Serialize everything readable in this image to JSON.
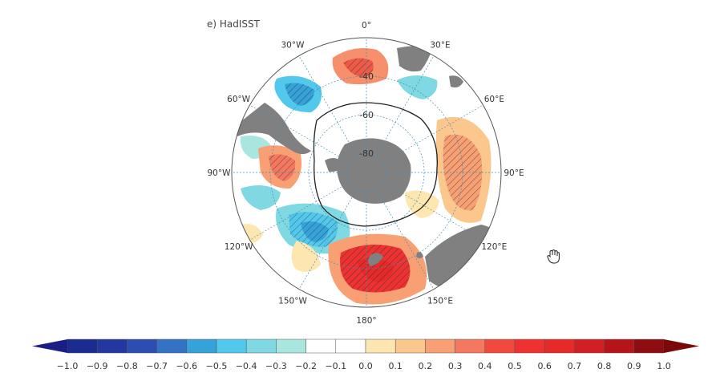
{
  "panel": {
    "title": "e) HadISST"
  },
  "lon_labels": [
    {
      "text": "0°",
      "lon": 0
    },
    {
      "text": "30°E",
      "lon": 30
    },
    {
      "text": "60°E",
      "lon": 60
    },
    {
      "text": "90°E",
      "lon": 90
    },
    {
      "text": "120°E",
      "lon": 120
    },
    {
      "text": "150°E",
      "lon": 150
    },
    {
      "text": "180°",
      "lon": 180
    },
    {
      "text": "150°W",
      "lon": -150
    },
    {
      "text": "120°W",
      "lon": -120
    },
    {
      "text": "90°W",
      "lon": -90
    },
    {
      "text": "60°W",
      "lon": -60
    },
    {
      "text": "30°W",
      "lon": -30
    }
  ],
  "lat_labels": [
    {
      "text": "-40",
      "lat": -40
    },
    {
      "text": "-60",
      "lat": -60
    },
    {
      "text": "-80",
      "lat": -80
    }
  ],
  "colorbar": {
    "ticks": [
      "-1.0",
      "-0.9",
      "-0.8",
      "-0.7",
      "-0.6",
      "-0.5",
      "-0.4",
      "-0.3",
      "-0.2",
      "-0.1",
      "0.0",
      "0.1",
      "0.2",
      "0.3",
      "0.4",
      "0.5",
      "0.6",
      "0.7",
      "0.8",
      "0.9",
      "1.0"
    ],
    "colors": [
      "#1c2b8f",
      "#23389f",
      "#2c4db2",
      "#3472c3",
      "#35a2d9",
      "#52c8ec",
      "#7fd8e2",
      "#a9e6df",
      "#ffffff",
      "#ffffff",
      "#fde6b0",
      "#fbc78c",
      "#f8a074",
      "#f4775f",
      "#f04a3e",
      "#ee3131",
      "#e62929",
      "#d21f23",
      "#b51519",
      "#8e0d10"
    ],
    "under_color": "#1a1f86",
    "over_color": "#7a0a0a"
  },
  "colors": {
    "land": "#808080",
    "grid": "#4a8fb5",
    "outline": "#333333"
  }
}
